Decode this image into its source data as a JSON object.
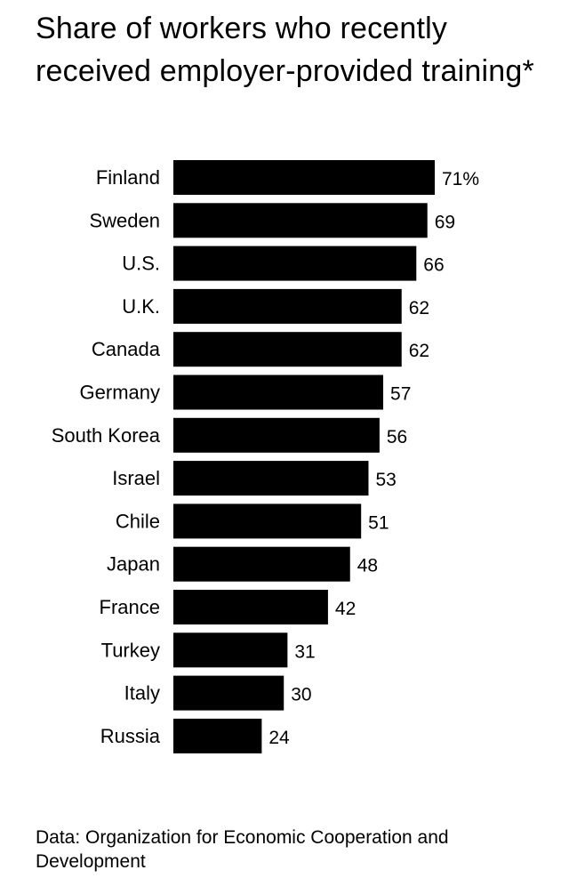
{
  "title": "Share of workers who recently received employer-provided training*",
  "source": "Data: Organization for Economic Cooperation and Development",
  "chart_data": {
    "type": "bar",
    "orientation": "horizontal",
    "title": "Share of workers who recently received employer-provided training*",
    "xlabel": "",
    "ylabel": "",
    "categories": [
      "Finland",
      "Sweden",
      "U.S.",
      "U.K.",
      "Canada",
      "Germany",
      "South Korea",
      "Israel",
      "Chile",
      "Japan",
      "France",
      "Turkey",
      "Italy",
      "Russia"
    ],
    "values": [
      71,
      69,
      66,
      62,
      62,
      57,
      56,
      53,
      51,
      48,
      42,
      31,
      30,
      24
    ],
    "value_labels": [
      "71%",
      "69",
      "66",
      "62",
      "62",
      "57",
      "56",
      "53",
      "51",
      "48",
      "42",
      "31",
      "30",
      "24"
    ],
    "xlim": [
      0,
      71
    ],
    "grid": false,
    "bar_color": "#000000"
  }
}
